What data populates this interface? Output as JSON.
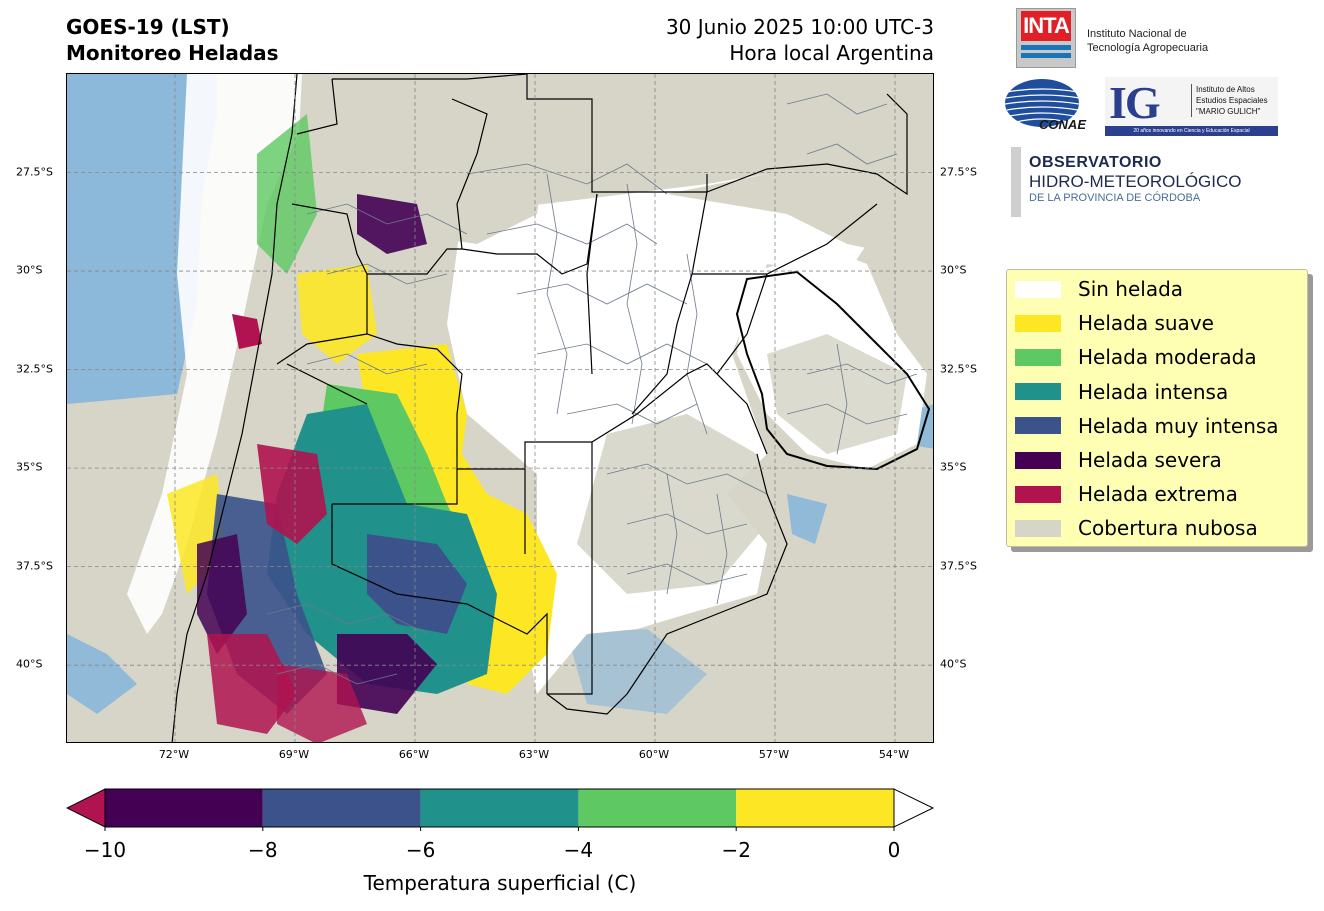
{
  "header": {
    "title_line1": "GOES-19 (LST)",
    "title_line2": "Monitoreo Heladas",
    "date_line1": "30 Junio 2025 10:00 UTC-3",
    "date_line2": "Hora local Argentina"
  },
  "map": {
    "projection": "PlateCarree",
    "lon_range": [
      -74.7,
      -53.0
    ],
    "lat_range": [
      -42.0,
      -25.0
    ],
    "gridlines": true,
    "lat_ticks": [
      "27.5°S",
      "30°S",
      "32.5°S",
      "35°S",
      "37.5°S",
      "40°S"
    ],
    "lat_values": [
      -27.5,
      -30,
      -32.5,
      -35,
      -37.5,
      -40
    ],
    "lon_ticks": [
      "72°W",
      "69°W",
      "66°W",
      "63°W",
      "60°W",
      "57°W",
      "54°W"
    ],
    "lon_values": [
      -72,
      -69,
      -66,
      -63,
      -60,
      -57,
      -54
    ],
    "colors": {
      "cloud": "#d6d5c8",
      "ocean": "#7fb3dc",
      "no_frost": "#ffffff",
      "light": "#fde725",
      "moderate": "#5ec962",
      "intense": "#21918c",
      "very_intense": "#3b528b",
      "severe": "#440154",
      "extreme": "#b0134f",
      "boundary": "#000000",
      "department": "#6b7a8c"
    }
  },
  "logos": {
    "inta_word": "INTA",
    "inta_line1": "Instituto Nacional de",
    "inta_line2": "Tecnología Agropecuaria",
    "conae_word": "CONAE",
    "ig_letters": "IG",
    "ig_line1": "Instituto de Altos",
    "ig_line2": "Estudios Espaciales",
    "ig_line3": "\"MARIO GULICH\"",
    "ig_bar": "20 años innovando en Ciencia y Educación Espacial",
    "obs_line1": "OBSERVATORIO",
    "obs_line2": "HIDRO-METEOROLÓGICO",
    "obs_line3": "DE LA PROVINCIA DE CÓRDOBA"
  },
  "legend": {
    "items": [
      {
        "label": "Sin helada",
        "color": "#ffffff"
      },
      {
        "label": "Helada suave",
        "color": "#fde725"
      },
      {
        "label": "Helada moderada",
        "color": "#5ec962"
      },
      {
        "label": "Helada intensa",
        "color": "#21918c"
      },
      {
        "label": "Helada muy intensa",
        "color": "#3b528b"
      },
      {
        "label": "Helada severa",
        "color": "#440154"
      },
      {
        "label": "Helada extrema",
        "color": "#b0134f"
      },
      {
        "label": "Cobertura nubosa",
        "color": "#d6d5c8"
      }
    ]
  },
  "colorbar": {
    "label": "Temperatura superficial (C)",
    "ticks": [
      "−10",
      "−8",
      "−6",
      "−4",
      "−2",
      "0"
    ],
    "tick_values": [
      -10,
      -8,
      -6,
      -4,
      -2,
      0
    ],
    "segments": [
      {
        "from": -10,
        "to": -8,
        "color": "#440154"
      },
      {
        "from": -8,
        "to": -6,
        "color": "#3b528b"
      },
      {
        "from": -6,
        "to": -4,
        "color": "#21918c"
      },
      {
        "from": -4,
        "to": -2,
        "color": "#5ec962"
      },
      {
        "from": -2,
        "to": 0,
        "color": "#fde725"
      }
    ],
    "extend_low_color": "#b0134f",
    "extend_high_color": "#ffffff"
  }
}
